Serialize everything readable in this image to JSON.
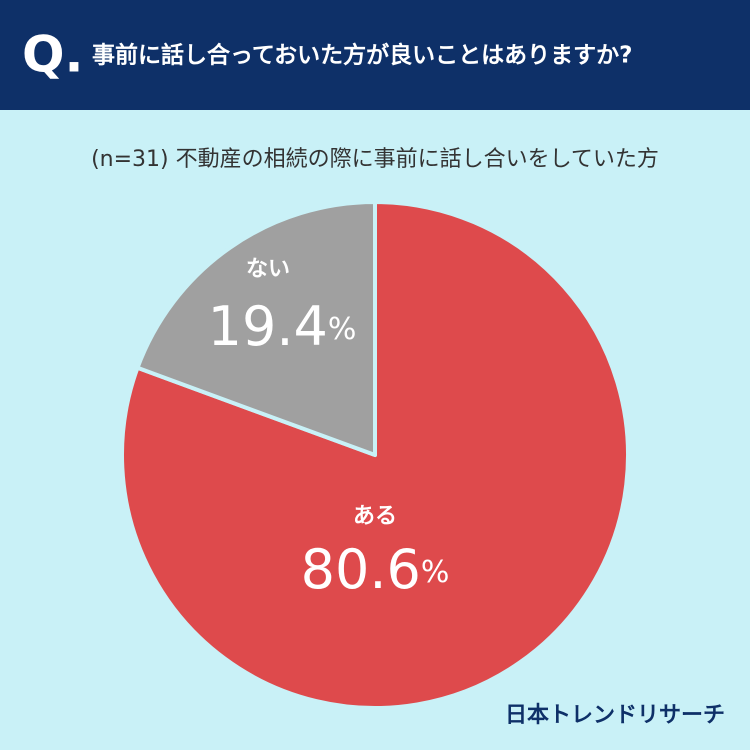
{
  "chart_data": {
    "type": "pie",
    "question_prefix": "Q.",
    "title": "事前に話し合っておいた方が良いことはありますか?",
    "subtitle": "(n=31) 不動産の相続の際に事前に話し合いをしていた方",
    "categories": [
      "ある",
      "ない"
    ],
    "values": [
      80.6,
      19.4
    ],
    "value_labels": [
      "80.6%",
      "19.4%"
    ],
    "colors": [
      "#de4a4c",
      "#a0a0a0"
    ],
    "source": "日本トレンドリサーチ"
  }
}
